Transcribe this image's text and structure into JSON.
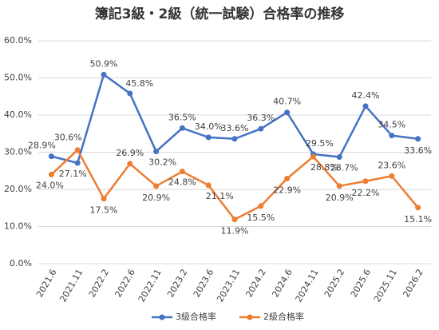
{
  "chart_data": {
    "type": "line",
    "title": "簿記3級・2級（統一試験）合格率の推移",
    "categories": [
      "2021.6",
      "2021.11",
      "2022.2",
      "2022.6",
      "2022.11",
      "2023.2",
      "2023.6",
      "2023.11",
      "2024.2",
      "2024.6",
      "2024.11",
      "2025.2",
      "2025.6",
      "2025.11",
      "2026.2"
    ],
    "series": [
      {
        "name": "3級合格率",
        "color": "#4472c4",
        "values": [
          28.9,
          27.1,
          50.9,
          45.8,
          30.2,
          36.5,
          34.0,
          33.6,
          36.3,
          40.7,
          29.5,
          28.7,
          42.4,
          34.5,
          33.6
        ],
        "value_labels": [
          "28.9%",
          "27.1%",
          "50.9%",
          "45.8%",
          "30.2%",
          "36.5%",
          "34.0%",
          "33.6%",
          "36.3%",
          "40.7%",
          "29.5%",
          "28.7%",
          "42.4%",
          "34.5%",
          "33.6%"
        ]
      },
      {
        "name": "2級合格率",
        "color": "#ed7d31",
        "values": [
          24.0,
          30.6,
          17.5,
          26.9,
          20.9,
          24.8,
          21.1,
          11.9,
          15.5,
          22.9,
          28.8,
          20.9,
          22.2,
          23.6,
          15.1
        ],
        "value_labels": [
          "24.0%",
          "30.6%",
          "17.5%",
          "26.9%",
          "20.9%",
          "24.8%",
          "21.1%",
          "11.9%",
          "15.5%",
          "22.9%",
          "28.8%",
          "20.9%",
          "22.2%",
          "23.6%",
          "15.1%"
        ]
      }
    ],
    "ylim": [
      0,
      60
    ],
    "yticks": [
      {
        "value": 0,
        "label": "0.0%"
      },
      {
        "value": 10,
        "label": "10.0%"
      },
      {
        "value": 20,
        "label": "20.0%"
      },
      {
        "value": 30,
        "label": "30.0%"
      },
      {
        "value": 40,
        "label": "40.0%"
      },
      {
        "value": 50,
        "label": "50.0%"
      },
      {
        "value": 60,
        "label": "60.0%"
      }
    ],
    "grid": true,
    "legend": "bottom"
  }
}
